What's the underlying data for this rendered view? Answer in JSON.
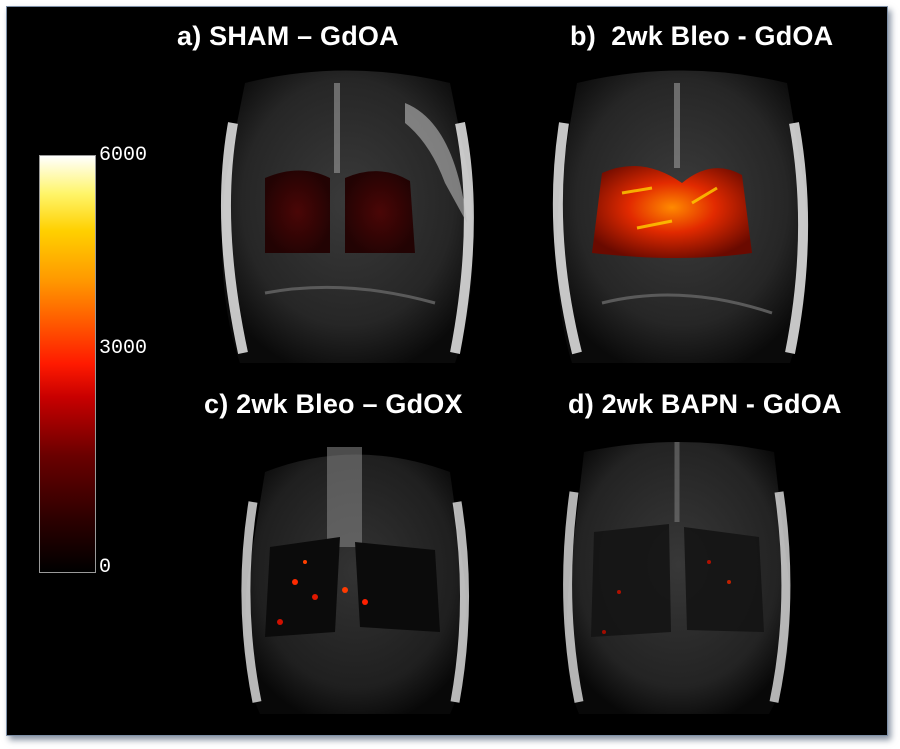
{
  "panels": [
    {
      "id": "a",
      "title": "a) SHAM – GdOA"
    },
    {
      "id": "b",
      "title": "b)  2wk Bleo - GdOA"
    },
    {
      "id": "c",
      "title": "c) 2wk Bleo – GdOX"
    },
    {
      "id": "d",
      "title": "d) 2wk BAPN - GdOA"
    }
  ],
  "colorbar": {
    "ticks": {
      "max": "6000",
      "mid": "3000",
      "min": "0"
    },
    "colormap": "hot",
    "colors": {
      "low": "#000000",
      "mid": "#ff1a00",
      "high": "#ffffff"
    }
  }
}
